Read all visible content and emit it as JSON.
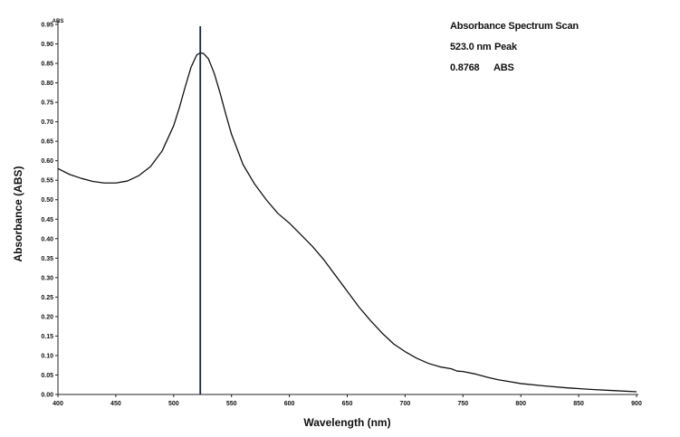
{
  "chart_data": {
    "type": "line",
    "xlabel": "Wavelength (nm)",
    "ylabel": "Absorbance (ABS)",
    "y_unit": "ABS",
    "xlim": [
      400,
      900
    ],
    "ylim": [
      0,
      0.95
    ],
    "x_ticks": [
      "400",
      "450",
      "500",
      "550",
      "600",
      "650",
      "700",
      "750",
      "800",
      "850",
      "900"
    ],
    "y_ticks": [
      "0.00",
      "0.05",
      "0.10",
      "0.15",
      "0.20",
      "0.25",
      "0.30",
      "0.35",
      "0.40",
      "0.45",
      "0.50",
      "0.55",
      "0.60",
      "0.65",
      "0.70",
      "0.75",
      "0.80",
      "0.85",
      "0.90",
      "0.95"
    ],
    "grid": false,
    "marker_line_x": 523,
    "series": [
      {
        "x": [
          400,
          410,
          420,
          430,
          440,
          450,
          460,
          470,
          480,
          490,
          500,
          505,
          510,
          515,
          520,
          523,
          526,
          530,
          535,
          540,
          545,
          550,
          560,
          570,
          580,
          590,
          600,
          610,
          620,
          630,
          640,
          650,
          660,
          670,
          680,
          690,
          700,
          710,
          720,
          730,
          740,
          745,
          750,
          760,
          770,
          780,
          790,
          800,
          820,
          840,
          860,
          880,
          900
        ],
        "y": [
          0.58,
          0.565,
          0.555,
          0.547,
          0.543,
          0.543,
          0.548,
          0.562,
          0.585,
          0.625,
          0.69,
          0.737,
          0.79,
          0.84,
          0.872,
          0.877,
          0.875,
          0.862,
          0.825,
          0.775,
          0.72,
          0.668,
          0.59,
          0.54,
          0.5,
          0.465,
          0.44,
          0.41,
          0.38,
          0.345,
          0.305,
          0.265,
          0.225,
          0.19,
          0.158,
          0.13,
          0.11,
          0.093,
          0.08,
          0.071,
          0.066,
          0.06,
          0.059,
          0.053,
          0.045,
          0.038,
          0.033,
          0.028,
          0.022,
          0.017,
          0.013,
          0.01,
          0.007
        ]
      }
    ]
  },
  "annotation": {
    "title": "Absorbance Spectrum Scan",
    "peak_value": "523.0 nm",
    "peak_label": "Peak",
    "abs_value": "0.8768",
    "abs_label": "ABS"
  }
}
